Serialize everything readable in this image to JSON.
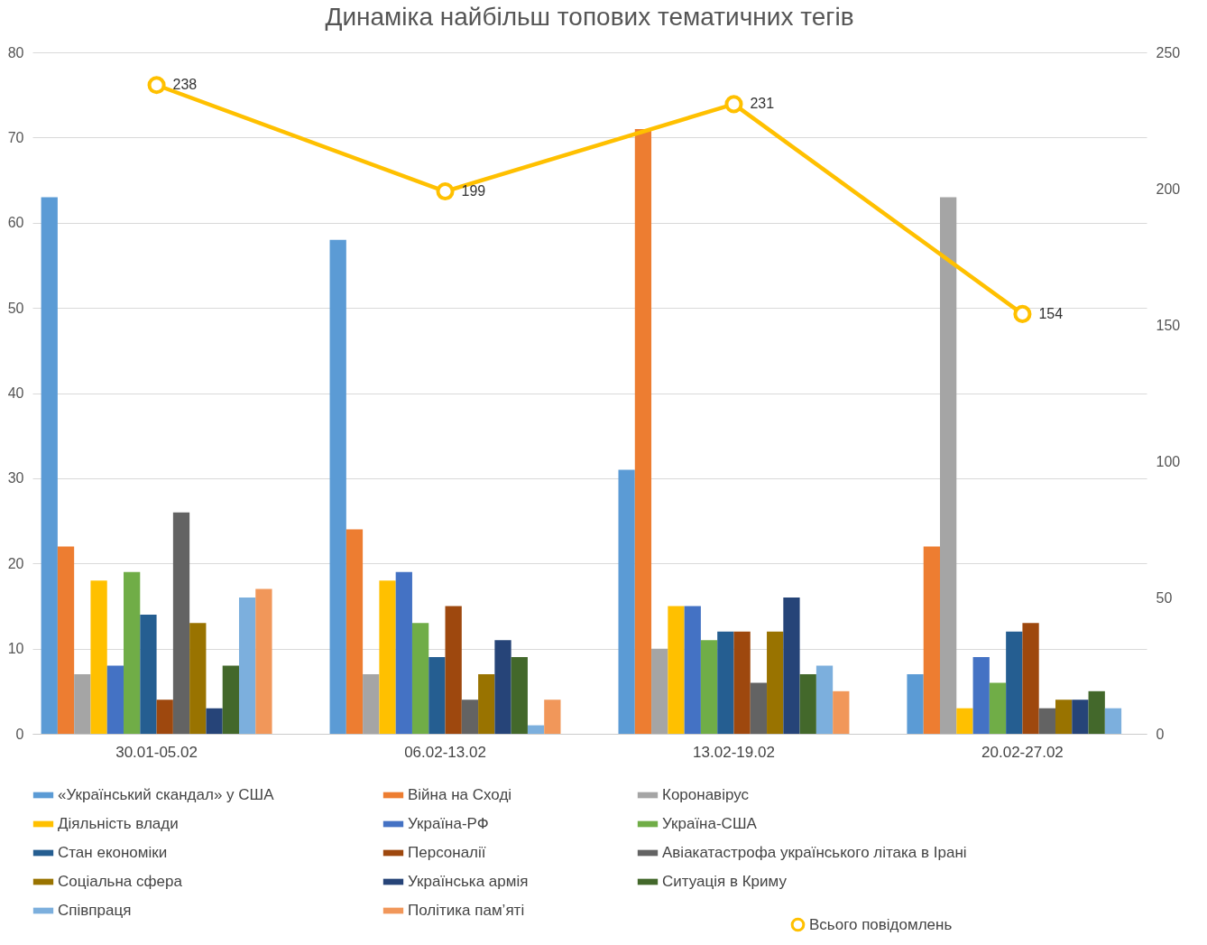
{
  "chart_data": {
    "type": "bar",
    "title": "Динаміка найбільш топових тематичних тегів",
    "categories": [
      "30.01-05.02",
      "06.02-13.02",
      "13.02-19.02",
      "20.02-27.02"
    ],
    "ylim": [
      0,
      80
    ],
    "yticks": [
      0,
      10,
      20,
      30,
      40,
      50,
      60,
      70,
      80
    ],
    "y2lim": [
      0,
      250
    ],
    "y2ticks": [
      0,
      50,
      100,
      150,
      200,
      250
    ],
    "grid": "y",
    "legend": "bottom",
    "series": [
      {
        "name": "«Український скандал» у США",
        "color": "#5b9bd5",
        "values": [
          63,
          58,
          31,
          7
        ]
      },
      {
        "name": "Війна на Сході",
        "color": "#ed7d31",
        "values": [
          22,
          24,
          71,
          22
        ]
      },
      {
        "name": "Коронавірус",
        "color": "#a5a5a5",
        "values": [
          7,
          7,
          10,
          63
        ]
      },
      {
        "name": "Діяльність влади",
        "color": "#ffc000",
        "values": [
          18,
          18,
          15,
          3
        ]
      },
      {
        "name": "Україна-РФ",
        "color": "#4472c4",
        "values": [
          8,
          19,
          15,
          9
        ]
      },
      {
        "name": "Україна-США",
        "color": "#70ad47",
        "values": [
          19,
          13,
          11,
          6
        ]
      },
      {
        "name": "Стан економіки",
        "color": "#255e91",
        "values": [
          14,
          9,
          12,
          12
        ]
      },
      {
        "name": "Персоналії",
        "color": "#9e480e",
        "values": [
          4,
          15,
          12,
          13
        ]
      },
      {
        "name": "Авіакатастрофа українського літака в Ірані",
        "color": "#636363",
        "values": [
          26,
          4,
          6,
          3
        ]
      },
      {
        "name": "Соціальна сфера",
        "color": "#997300",
        "values": [
          13,
          7,
          12,
          4
        ]
      },
      {
        "name": "Українська армія",
        "color": "#264478",
        "values": [
          3,
          11,
          16,
          4
        ]
      },
      {
        "name": "Ситуація в Криму",
        "color": "#43682b",
        "values": [
          8,
          9,
          7,
          5
        ]
      },
      {
        "name": "Співпраця",
        "color": "#7cafdd",
        "values": [
          16,
          1,
          8,
          3
        ]
      },
      {
        "name": "Політика пам’яті",
        "color": "#f1975a",
        "values": [
          17,
          4,
          5,
          null
        ]
      },
      {
        "name": "Всього повідомлень",
        "type": "line",
        "axis": "y2",
        "marker": "circle",
        "color": "#ffc000",
        "values": [
          238,
          199,
          231,
          154
        ],
        "value_labels": [
          "238",
          "199",
          "231",
          "154"
        ]
      }
    ]
  }
}
